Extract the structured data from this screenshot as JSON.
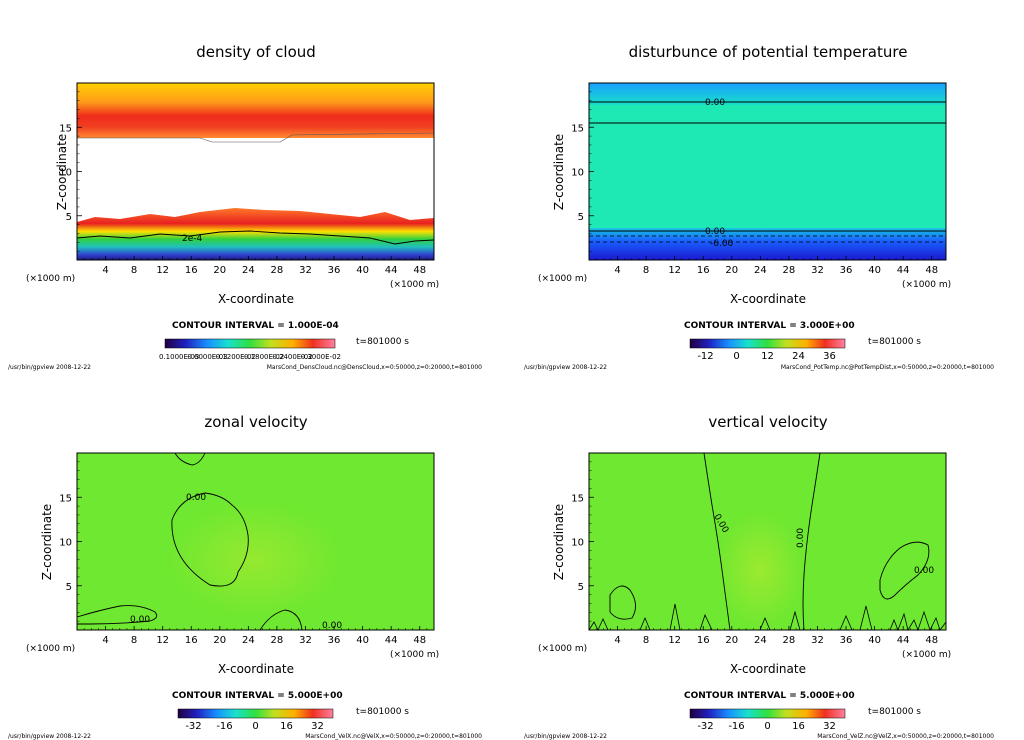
{
  "chart_data": [
    {
      "type": "heatmap",
      "id": "p1",
      "title": "density of cloud",
      "xlabel": "X-coordinate",
      "ylabel": "Z-coordinate",
      "xunit": "(×1000 m)",
      "xunit2": "(×1000 m)",
      "xlim": [
        0,
        50
      ],
      "ylim": [
        0,
        20
      ],
      "xticks": [
        4,
        8,
        12,
        16,
        20,
        24,
        28,
        32,
        36,
        40,
        44,
        48
      ],
      "yticks": [
        5,
        10,
        15
      ],
      "contour_labels": [
        "2e-4"
      ],
      "contour_interval": "CONTOUR INTERVAL = 1.000E-04",
      "time": "t=801000  s",
      "colorbar_ticks": [
        "0.1000E-03",
        "0.6000E-03",
        "0.1200E-02",
        "0.1800E-02",
        "0.2400E-02",
        "0.3000E-02"
      ],
      "footer_left": "/usr/bin/gpview   2008-12-22",
      "footer_right": "MarsCond_DensCloud.nc@DensCloud,x=0:50000,z=0:20000,t=801000"
    },
    {
      "type": "heatmap",
      "id": "p2",
      "title": "disturbunce of potential temperature",
      "xlabel": "X-coordinate",
      "ylabel": "Z-coordinate",
      "xunit": "(×1000 m)",
      "xunit2": "(×1000 m)",
      "xlim": [
        0,
        50
      ],
      "ylim": [
        0,
        20
      ],
      "xticks": [
        4,
        8,
        12,
        16,
        20,
        24,
        28,
        32,
        36,
        40,
        44,
        48
      ],
      "yticks": [
        5,
        10,
        15
      ],
      "contour_labels": [
        "0.00",
        "0.00",
        "-6.00"
      ],
      "contour_interval": "CONTOUR INTERVAL = 3.000E+00",
      "time": "t=801000  s",
      "colorbar_ticks": [
        "-12",
        "0",
        "12",
        "24",
        "36"
      ],
      "footer_left": "/usr/bin/gpview   2008-12-22",
      "footer_right": "MarsCond_PotTemp.nc@PotTempDist,x=0:50000,z=0:20000,t=801000"
    },
    {
      "type": "heatmap",
      "id": "p3",
      "title": "zonal velocity",
      "xlabel": "X-coordinate",
      "ylabel": "Z-coordinate",
      "xunit": "(×1000 m)",
      "xunit2": "(×1000 m)",
      "xlim": [
        0,
        50
      ],
      "ylim": [
        0,
        20
      ],
      "xticks": [
        4,
        8,
        12,
        16,
        20,
        24,
        28,
        32,
        36,
        40,
        44,
        48
      ],
      "yticks": [
        5,
        10,
        15
      ],
      "contour_labels": [
        "0.00",
        "0.00",
        "0.00"
      ],
      "contour_interval": "CONTOUR INTERVAL = 5.000E+00",
      "time": "t=801000  s",
      "colorbar_ticks": [
        "-32",
        "-16",
        "0",
        "16",
        "32"
      ],
      "footer_left": "/usr/bin/gpview   2008-12-22",
      "footer_right": "MarsCond_VelX.nc@VelX,x=0:50000,z=0:20000,t=801000"
    },
    {
      "type": "heatmap",
      "id": "p4",
      "title": "vertical velocity",
      "xlabel": "X-coordinate",
      "ylabel": "Z-coordinate",
      "xunit": "(×1000 m)",
      "xunit2": "(×1000 m)",
      "xlim": [
        0,
        50
      ],
      "ylim": [
        0,
        20
      ],
      "xticks": [
        4,
        8,
        12,
        16,
        20,
        24,
        28,
        32,
        36,
        40,
        44,
        48
      ],
      "yticks": [
        5,
        10,
        15
      ],
      "contour_labels": [
        "0.00",
        "0.00",
        "0.00"
      ],
      "contour_interval": "CONTOUR INTERVAL = 5.000E+00",
      "time": "t=801000  s",
      "colorbar_ticks": [
        "-32",
        "-16",
        "0",
        "16",
        "32"
      ],
      "footer_left": "/usr/bin/gpview   2008-12-22",
      "footer_right": "MarsCond_VelZ.nc@VelZ,x=0:50000,z=0:20000,t=801000"
    }
  ]
}
